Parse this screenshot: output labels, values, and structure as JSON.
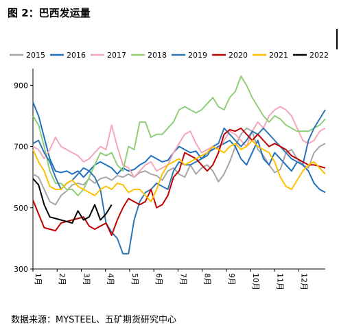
{
  "title": "图 2：巴西发运量",
  "source": "数据来源：MYSTEEL、五矿期货研究中心",
  "chart_data": {
    "type": "line",
    "ylim": [
      300,
      950
    ],
    "yticks": [
      300,
      500,
      700,
      900
    ],
    "xlim": [
      0,
      52
    ],
    "xticks": [
      {
        "x": 0,
        "label": "1月"
      },
      {
        "x": 4.3,
        "label": "2月"
      },
      {
        "x": 8.6,
        "label": "3月"
      },
      {
        "x": 12.9,
        "label": "4月"
      },
      {
        "x": 17.2,
        "label": "5月"
      },
      {
        "x": 21.5,
        "label": "6月"
      },
      {
        "x": 25.8,
        "label": "7月"
      },
      {
        "x": 30.1,
        "label": "8月"
      },
      {
        "x": 34.4,
        "label": "9月"
      },
      {
        "x": 38.7,
        "label": "10月"
      },
      {
        "x": 43,
        "label": "11月"
      },
      {
        "x": 47.3,
        "label": "12月"
      }
    ],
    "grid": false,
    "legend_position": "top",
    "series": [
      {
        "name": "2015",
        "color": "#a6a6a6",
        "values": [
          610,
          600,
          560,
          520,
          510,
          540,
          555,
          575,
          580,
          575,
          595,
          580,
          595,
          600,
          590,
          605,
          600,
          610,
          600,
          615,
          620,
          610,
          605,
          590,
          620,
          630,
          610,
          600,
          640,
          610,
          630,
          640,
          620,
          585,
          610,
          650,
          700,
          740,
          760,
          750,
          690,
          670,
          640,
          615,
          625,
          680,
          690,
          660,
          640,
          630,
          680,
          700,
          710
        ]
      },
      {
        "name": "2016",
        "color": "#1f6fbf",
        "values": [
          845,
          800,
          730,
          660,
          620,
          615,
          620,
          610,
          620,
          600,
          620,
          640,
          650,
          640,
          630,
          610,
          630,
          620,
          625,
          640,
          650,
          670,
          660,
          650,
          655,
          680,
          700,
          690,
          680,
          685,
          660,
          680,
          690,
          700,
          710,
          720,
          700,
          660,
          640,
          680,
          720,
          660,
          640,
          680,
          660,
          640,
          620,
          650,
          640,
          620,
          580,
          560,
          550
        ]
      },
      {
        "name": "2017",
        "color": "#f4a7b9",
        "values": [
          700,
          690,
          660,
          690,
          730,
          700,
          690,
          680,
          670,
          650,
          660,
          680,
          700,
          690,
          770,
          700,
          640,
          630,
          600,
          620,
          640,
          650,
          620,
          630,
          640,
          680,
          710,
          740,
          750,
          710,
          680,
          690,
          700,
          690,
          720,
          750,
          740,
          720,
          700,
          750,
          780,
          760,
          800,
          820,
          830,
          820,
          800,
          760,
          720,
          710,
          720,
          750,
          760
        ]
      },
      {
        "name": "2018",
        "color": "#8fcf78",
        "values": [
          800,
          770,
          700,
          620,
          580,
          580,
          560,
          560,
          540,
          560,
          600,
          640,
          680,
          670,
          680,
          640,
          620,
          700,
          690,
          780,
          780,
          730,
          740,
          740,
          760,
          780,
          820,
          830,
          820,
          810,
          820,
          840,
          860,
          830,
          820,
          860,
          880,
          930,
          900,
          860,
          830,
          800,
          780,
          800,
          790,
          770,
          760,
          750,
          750,
          750,
          760,
          770,
          790
        ]
      },
      {
        "name": "2019",
        "color": "#2e75b6",
        "values": [
          710,
          720,
          680,
          650,
          600,
          560,
          580,
          590,
          610,
          630,
          620,
          600,
          560,
          450,
          420,
          400,
          350,
          350,
          460,
          520,
          550,
          560,
          580,
          570,
          560,
          620,
          650,
          640,
          640,
          650,
          660,
          670,
          700,
          710,
          760,
          740,
          720,
          700,
          720,
          750,
          740,
          760,
          740,
          720,
          700,
          680,
          660,
          650,
          640,
          720,
          760,
          790,
          820
        ]
      },
      {
        "name": "2020",
        "color": "#c00000",
        "values": [
          525,
          480,
          435,
          430,
          425,
          450,
          455,
          460,
          465,
          470,
          440,
          430,
          440,
          450,
          410,
          460,
          500,
          530,
          520,
          510,
          520,
          560,
          500,
          510,
          540,
          600,
          620,
          680,
          670,
          660,
          640,
          620,
          640,
          680,
          740,
          755,
          750,
          760,
          740,
          720,
          740,
          720,
          700,
          710,
          700,
          690,
          670,
          660,
          650,
          640,
          640,
          635,
          630
        ]
      },
      {
        "name": "2021",
        "color": "#ffc000",
        "values": [
          690,
          650,
          620,
          570,
          560,
          560,
          580,
          590,
          570,
          560,
          550,
          540,
          560,
          570,
          560,
          580,
          575,
          550,
          560,
          560,
          540,
          520,
          560,
          610,
          640,
          650,
          660,
          640,
          650,
          660,
          670,
          680,
          700,
          690,
          680,
          700,
          710,
          690,
          700,
          720,
          700,
          690,
          680,
          650,
          600,
          570,
          560,
          590,
          620,
          640,
          650,
          630,
          610
        ]
      },
      {
        "name": "2022",
        "color": "#000000",
        "values": [
          595,
          575,
          510,
          470,
          465,
          460,
          455,
          450,
          490,
          460,
          470,
          510,
          460,
          480,
          510
        ]
      }
    ]
  }
}
